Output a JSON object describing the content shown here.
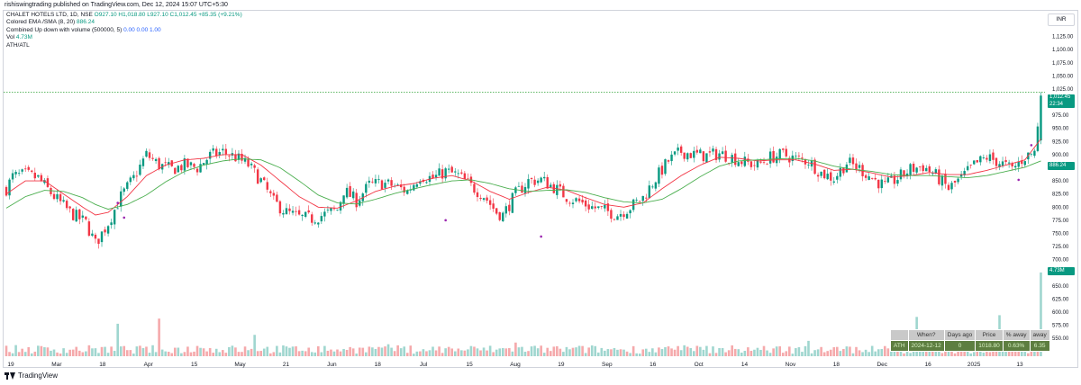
{
  "header": {
    "published_text": "rishiswingtrading published on TradingView.com, Dec 12, 2024 15:07 UTC+5:30"
  },
  "legend": {
    "symbol": "CHALET HOTELS LTD, 1D, NSE",
    "ohlc": "O927.10  H1,018.80  L927.10  C1,012.45  +85.35 (+9.21%)",
    "ema_label": "Colored EMA /SMA (8, 20)",
    "ema_value": "886.24",
    "updown_label": "Combined Up down with volume (500000, 5)",
    "updown_values": "0.00  0.00  1.00",
    "vol_label": "Vol",
    "vol_value": "4.73M",
    "ath_label": "ATH/ATL"
  },
  "currency": "INR",
  "price_tags": {
    "last_price": "1,012.45",
    "countdown": "22:34",
    "ma_value": "886.24",
    "volume": "4.73M"
  },
  "ath_table": {
    "headers": [
      "",
      "When?",
      "Days ago",
      "Price",
      "% away",
      "away"
    ],
    "row": [
      "ATH",
      "2024-12-12",
      "0",
      "1018.80",
      "0.63%",
      "6.35"
    ]
  },
  "footer": {
    "brand": "TradingView"
  },
  "chart_data": {
    "type": "candlestick",
    "colors": {
      "up": "#089981",
      "down": "#f23645",
      "ema": "#f23645",
      "sma": "#4caf50",
      "dot": "#9c27b0",
      "ath_line": "#4caf50"
    },
    "y_axis": {
      "range": [
        540,
        1150
      ],
      "ticks": [
        "1,125.00",
        "1,100.00",
        "1,075.00",
        "1,050.00",
        "1,025.00",
        "975.00",
        "950.00",
        "925.00",
        "900.00",
        "875.00",
        "850.00",
        "825.00",
        "800.00",
        "775.00",
        "750.00",
        "725.00",
        "700.00",
        "675.00",
        "650.00",
        "625.00",
        "600.00",
        "575.00",
        "550.00"
      ]
    },
    "x_axis": {
      "labels": [
        "19",
        "Mar",
        "18",
        "Apr",
        "15",
        "May",
        "21",
        "Jun",
        "18",
        "Jul",
        "15",
        "Aug",
        "19",
        "Sep",
        "16",
        "Oct",
        "14",
        "Nov",
        "18",
        "Dec",
        "16",
        "2025",
        "13"
      ]
    },
    "ath_level": 1018.8,
    "anchors": [
      [
        0,
        835
      ],
      [
        2,
        858
      ],
      [
        6,
        862
      ],
      [
        10,
        855
      ],
      [
        15,
        820
      ],
      [
        20,
        790
      ],
      [
        25,
        770
      ],
      [
        28,
        730
      ],
      [
        32,
        770
      ],
      [
        36,
        820
      ],
      [
        40,
        855
      ],
      [
        44,
        900
      ],
      [
        48,
        880
      ],
      [
        52,
        872
      ],
      [
        56,
        880
      ],
      [
        60,
        875
      ],
      [
        64,
        898
      ],
      [
        68,
        905
      ],
      [
        72,
        895
      ],
      [
        76,
        880
      ],
      [
        80,
        850
      ],
      [
        84,
        810
      ],
      [
        88,
        790
      ],
      [
        92,
        780
      ],
      [
        96,
        778
      ],
      [
        100,
        786
      ],
      [
        104,
        795
      ],
      [
        106,
        832
      ],
      [
        110,
        812
      ],
      [
        114,
        842
      ],
      [
        118,
        846
      ],
      [
        122,
        840
      ],
      [
        126,
        830
      ],
      [
        130,
        860
      ],
      [
        134,
        855
      ],
      [
        138,
        868
      ],
      [
        142,
        860
      ],
      [
        146,
        840
      ],
      [
        150,
        822
      ],
      [
        154,
        790
      ],
      [
        156,
        785
      ],
      [
        160,
        825
      ],
      [
        164,
        850
      ],
      [
        168,
        852
      ],
      [
        172,
        838
      ],
      [
        176,
        820
      ],
      [
        180,
        810
      ],
      [
        184,
        800
      ],
      [
        188,
        793
      ],
      [
        192,
        786
      ],
      [
        196,
        800
      ],
      [
        200,
        818
      ],
      [
        204,
        855
      ],
      [
        208,
        888
      ],
      [
        212,
        906
      ],
      [
        216,
        900
      ],
      [
        220,
        898
      ],
      [
        224,
        902
      ],
      [
        228,
        895
      ],
      [
        232,
        885
      ],
      [
        236,
        880
      ],
      [
        240,
        895
      ],
      [
        244,
        900
      ],
      [
        248,
        892
      ],
      [
        252,
        888
      ],
      [
        256,
        865
      ],
      [
        260,
        855
      ],
      [
        264,
        885
      ],
      [
        268,
        874
      ],
      [
        272,
        855
      ],
      [
        276,
        840
      ],
      [
        280,
        855
      ],
      [
        284,
        872
      ],
      [
        288,
        878
      ],
      [
        292,
        860
      ],
      [
        296,
        835
      ],
      [
        300,
        855
      ],
      [
        304,
        880
      ],
      [
        308,
        895
      ],
      [
        312,
        885
      ],
      [
        316,
        872
      ],
      [
        320,
        896
      ],
      [
        323,
        905
      ],
      [
        325,
        1012.45
      ]
    ],
    "ema_anchors": [
      [
        0,
        825
      ],
      [
        6,
        850
      ],
      [
        12,
        850
      ],
      [
        18,
        825
      ],
      [
        24,
        800
      ],
      [
        28,
        785
      ],
      [
        32,
        790
      ],
      [
        38,
        820
      ],
      [
        44,
        860
      ],
      [
        50,
        880
      ],
      [
        56,
        890
      ],
      [
        62,
        893
      ],
      [
        68,
        900
      ],
      [
        74,
        900
      ],
      [
        80,
        880
      ],
      [
        86,
        850
      ],
      [
        92,
        820
      ],
      [
        98,
        800
      ],
      [
        104,
        798
      ],
      [
        110,
        812
      ],
      [
        116,
        830
      ],
      [
        122,
        840
      ],
      [
        128,
        845
      ],
      [
        134,
        855
      ],
      [
        140,
        860
      ],
      [
        146,
        850
      ],
      [
        152,
        830
      ],
      [
        158,
        815
      ],
      [
        164,
        828
      ],
      [
        170,
        838
      ],
      [
        176,
        832
      ],
      [
        182,
        818
      ],
      [
        188,
        805
      ],
      [
        194,
        800
      ],
      [
        200,
        808
      ],
      [
        206,
        835
      ],
      [
        212,
        860
      ],
      [
        218,
        880
      ],
      [
        224,
        895
      ],
      [
        230,
        893
      ],
      [
        236,
        888
      ],
      [
        242,
        890
      ],
      [
        248,
        890
      ],
      [
        254,
        882
      ],
      [
        260,
        870
      ],
      [
        266,
        872
      ],
      [
        272,
        865
      ],
      [
        278,
        857
      ],
      [
        284,
        860
      ],
      [
        290,
        866
      ],
      [
        296,
        862
      ],
      [
        302,
        862
      ],
      [
        308,
        870
      ],
      [
        314,
        880
      ],
      [
        320,
        890
      ],
      [
        325,
        930
      ]
    ],
    "sma_anchors": [
      [
        0,
        798
      ],
      [
        6,
        820
      ],
      [
        12,
        832
      ],
      [
        18,
        830
      ],
      [
        24,
        818
      ],
      [
        28,
        805
      ],
      [
        32,
        796
      ],
      [
        38,
        805
      ],
      [
        44,
        823
      ],
      [
        50,
        848
      ],
      [
        56,
        868
      ],
      [
        62,
        880
      ],
      [
        68,
        888
      ],
      [
        74,
        892
      ],
      [
        80,
        890
      ],
      [
        86,
        875
      ],
      [
        92,
        850
      ],
      [
        98,
        823
      ],
      [
        104,
        808
      ],
      [
        110,
        806
      ],
      [
        116,
        815
      ],
      [
        122,
        826
      ],
      [
        128,
        835
      ],
      [
        134,
        843
      ],
      [
        140,
        850
      ],
      [
        146,
        852
      ],
      [
        152,
        845
      ],
      [
        158,
        835
      ],
      [
        164,
        830
      ],
      [
        170,
        832
      ],
      [
        176,
        833
      ],
      [
        182,
        828
      ],
      [
        188,
        818
      ],
      [
        194,
        810
      ],
      [
        200,
        808
      ],
      [
        206,
        815
      ],
      [
        212,
        835
      ],
      [
        218,
        858
      ],
      [
        224,
        878
      ],
      [
        230,
        888
      ],
      [
        236,
        890
      ],
      [
        242,
        892
      ],
      [
        248,
        893
      ],
      [
        254,
        888
      ],
      [
        260,
        878
      ],
      [
        266,
        872
      ],
      [
        272,
        868
      ],
      [
        278,
        862
      ],
      [
        284,
        860
      ],
      [
        290,
        860
      ],
      [
        296,
        858
      ],
      [
        302,
        856
      ],
      [
        308,
        860
      ],
      [
        314,
        868
      ],
      [
        320,
        876
      ],
      [
        325,
        888
      ]
    ],
    "volume_spikes": [
      [
        35,
        0.38
      ],
      [
        48,
        0.44
      ],
      [
        60,
        0.12
      ],
      [
        78,
        0.25
      ],
      [
        95,
        0.1
      ],
      [
        120,
        0.14
      ],
      [
        160,
        0.16
      ],
      [
        220,
        0.12
      ],
      [
        252,
        0.18
      ],
      [
        286,
        0.46
      ],
      [
        290,
        0.2
      ],
      [
        312,
        0.48
      ],
      [
        318,
        0.3
      ],
      [
        325,
        0.98
      ]
    ],
    "dots": [
      [
        35,
        808
      ],
      [
        37,
        780
      ],
      [
        138,
        775
      ],
      [
        168,
        744
      ],
      [
        318,
        852
      ],
      [
        322,
        918
      ]
    ]
  }
}
